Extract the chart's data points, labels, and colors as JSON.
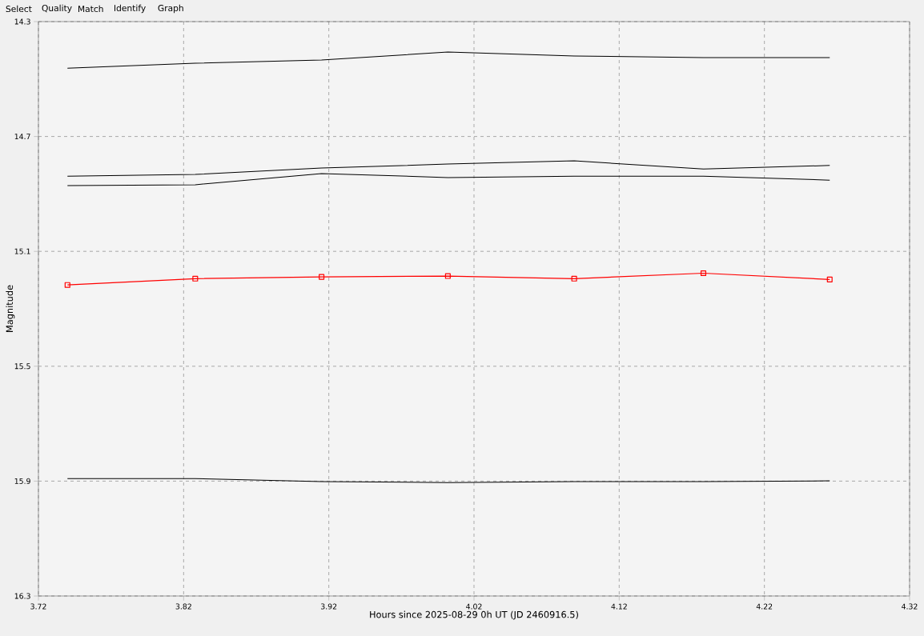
{
  "chart_data": {
    "type": "line",
    "xlabel": "Hours since 2025-08-29 0h UT (JD 2460916.5)",
    "ylabel": "Magnitude",
    "annotations": [
      "Select",
      "Quality",
      "Match",
      "Identify",
      "Graph"
    ],
    "x": [
      3.74,
      3.828,
      3.915,
      4.002,
      4.089,
      4.178,
      4.265
    ],
    "series": [
      {
        "color": "#000000",
        "values": [
          14.462,
          14.445,
          14.434,
          14.406,
          14.42,
          14.425,
          14.425
        ]
      },
      {
        "color": "#000000",
        "values": [
          14.838,
          14.832,
          14.81,
          14.796,
          14.785,
          14.813,
          14.801
        ]
      },
      {
        "color": "#000000",
        "values": [
          14.871,
          14.868,
          14.829,
          14.843,
          14.838,
          14.838,
          14.852
        ]
      },
      {
        "color": "#ff0000",
        "marker": "square",
        "values": [
          15.217,
          15.195,
          15.189,
          15.186,
          15.195,
          15.176,
          15.198
        ]
      },
      {
        "color": "#000000",
        "values": [
          15.891,
          15.891,
          15.902,
          15.905,
          15.902,
          15.902,
          15.899
        ]
      }
    ],
    "xlim": [
      3.72,
      4.32
    ],
    "ylim": [
      16.3,
      14.3
    ],
    "xticks": [
      3.72,
      3.82,
      3.92,
      4.02,
      4.12,
      4.22,
      4.32
    ],
    "yticks": [
      14.3,
      14.7,
      15.1,
      15.5,
      15.9,
      16.3
    ],
    "grid": true,
    "line_style": "solid",
    "marker": "none"
  }
}
